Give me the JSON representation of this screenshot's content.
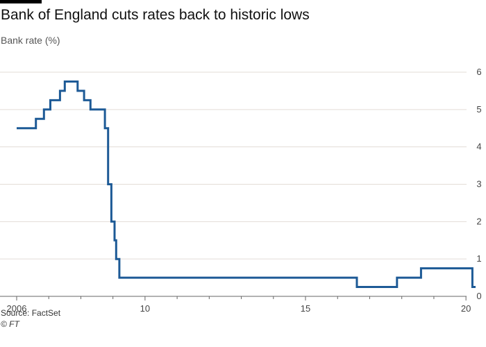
{
  "header": {
    "title": "Bank of England cuts rates back to historic lows",
    "subtitle": "Bank rate (%)"
  },
  "footer": {
    "source": "Source: FactSet",
    "copyright": "© FT"
  },
  "colors": {
    "line": "#1d5a96",
    "grid": "#e3dcd6",
    "axis": "#666666"
  },
  "chart_data": {
    "type": "line",
    "title": "Bank of England cuts rates back to historic lows",
    "ylabel": "Bank rate (%)",
    "xlim": [
      2006,
      2020.3
    ],
    "ylim": [
      0,
      6
    ],
    "grid": true,
    "y_axis_side": "right",
    "x_ticks": [
      {
        "value": 2006,
        "label": "2006"
      },
      {
        "value": 2010,
        "label": "10"
      },
      {
        "value": 2015,
        "label": "15"
      },
      {
        "value": 2020,
        "label": "20"
      }
    ],
    "y_ticks": [
      0,
      1,
      2,
      3,
      4,
      5,
      6
    ],
    "series": [
      {
        "step": true,
        "x": [
          2006.0,
          2006.6,
          2006.85,
          2007.05,
          2007.35,
          2007.5,
          2007.9,
          2008.1,
          2008.3,
          2008.75,
          2008.85,
          2008.95,
          2009.05,
          2009.1,
          2009.2,
          2016.6,
          2017.85,
          2018.6,
          2020.2,
          2020.3
        ],
        "y": [
          4.5,
          4.75,
          5.0,
          5.25,
          5.5,
          5.75,
          5.5,
          5.25,
          5.0,
          4.5,
          3.0,
          2.0,
          1.5,
          1.0,
          0.5,
          0.25,
          0.5,
          0.75,
          0.25,
          0.25
        ]
      }
    ]
  }
}
